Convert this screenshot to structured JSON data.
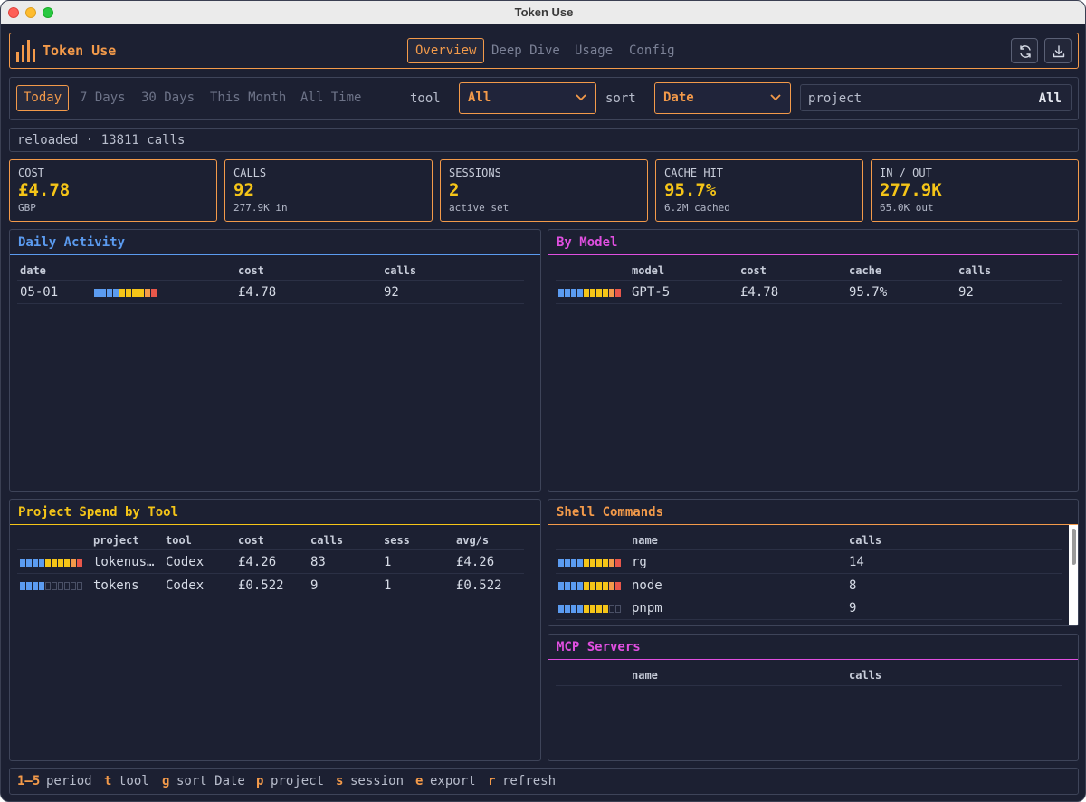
{
  "window": {
    "title": "Token Use"
  },
  "app": {
    "name": "Token Use"
  },
  "tabs": [
    "Overview",
    "Deep Dive",
    "Usage",
    "Config"
  ],
  "periods": [
    "Today",
    "7 Days",
    "30 Days",
    "This Month",
    "All Time"
  ],
  "filters": {
    "tool_label": "tool",
    "tool_value": "All",
    "sort_label": "sort",
    "sort_value": "Date",
    "project_label": "project",
    "project_value": "All"
  },
  "status": "reloaded · 13811 calls",
  "stats": [
    {
      "label": "COST",
      "value": "£4.78",
      "sub": "GBP"
    },
    {
      "label": "CALLS",
      "value": "92",
      "sub": "277.9K in"
    },
    {
      "label": "SESSIONS",
      "value": "2",
      "sub": "active set"
    },
    {
      "label": "CACHE HIT",
      "value": "95.7%",
      "sub": "6.2M cached"
    },
    {
      "label": "IN / OUT",
      "value": "277.9K",
      "sub": "65.0K out"
    }
  ],
  "daily": {
    "title": "Daily Activity",
    "headers": [
      "date",
      "cost",
      "calls"
    ],
    "rows": [
      {
        "date": "05-01",
        "cost": "£4.78",
        "calls": "92",
        "level": 1.0
      }
    ]
  },
  "by_model": {
    "title": "By Model",
    "headers": [
      "model",
      "cost",
      "cache",
      "calls"
    ],
    "rows": [
      {
        "model": "GPT-5",
        "cost": "£4.78",
        "cache": "95.7%",
        "calls": "92",
        "level": 1.0
      }
    ]
  },
  "project_spend": {
    "title": "Project Spend by Tool",
    "headers": [
      "project",
      "tool",
      "cost",
      "calls",
      "sess",
      "avg/s"
    ],
    "rows": [
      {
        "project": "tokenus…",
        "tool": "Codex",
        "cost": "£4.26",
        "calls": "83",
        "sess": "1",
        "avg": "£4.26",
        "level": 1.0
      },
      {
        "project": "tokens",
        "tool": "Codex",
        "cost": "£0.522",
        "calls": "9",
        "sess": "1",
        "avg": "£0.522",
        "level": 0.4
      }
    ]
  },
  "shell": {
    "title": "Shell Commands",
    "headers": [
      "name",
      "calls"
    ],
    "rows": [
      {
        "name": "rg",
        "calls": "14",
        "level": 1.0
      },
      {
        "name": "node",
        "calls": "8",
        "level": 1.0
      },
      {
        "name": "pnpm",
        "calls": "9",
        "level": 0.8
      }
    ]
  },
  "mcp": {
    "title": "MCP Servers",
    "headers": [
      "name",
      "calls"
    ],
    "rows": []
  },
  "footer": [
    {
      "key": "1–5",
      "label": "period"
    },
    {
      "key": "t",
      "label": "tool"
    },
    {
      "key": "g",
      "label": "sort Date"
    },
    {
      "key": "p",
      "label": "project"
    },
    {
      "key": "s",
      "label": "session"
    },
    {
      "key": "e",
      "label": "export"
    },
    {
      "key": "r",
      "label": "refresh"
    }
  ],
  "colors": {
    "accent": "#f39a4a",
    "value": "#f5c518",
    "daily_title": "#5b9bf0",
    "model_title": "#e04fe0",
    "project_title": "#f5c518",
    "shell_title": "#f39a4a",
    "mcp_title": "#e04fe0"
  }
}
